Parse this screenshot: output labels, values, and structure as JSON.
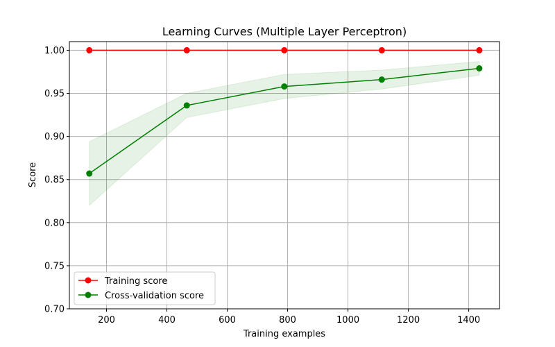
{
  "chart_data": {
    "type": "line",
    "title": "Learning Curves (Multiple Layer Perceptron)",
    "xlabel": "Training examples",
    "ylabel": "Score",
    "xlim": [
      77,
      1502
    ],
    "ylim": [
      0.7,
      1.01
    ],
    "x_ticks": [
      200,
      400,
      600,
      800,
      1000,
      1200,
      1400
    ],
    "y_ticks": [
      0.7,
      0.75,
      0.8,
      0.85,
      0.9,
      0.95,
      1.0
    ],
    "x_tick_labels": [
      "200",
      "400",
      "600",
      "800",
      "1000",
      "1200",
      "1400"
    ],
    "y_tick_labels": [
      "0.70",
      "0.75",
      "0.80",
      "0.85",
      "0.90",
      "0.95",
      "1.00"
    ],
    "grid": true,
    "legend_position": "lower-left",
    "x": [
      143,
      466,
      789,
      1112,
      1435
    ],
    "series": [
      {
        "name": "Training score",
        "color": "#ff0000",
        "values": [
          1.0,
          1.0,
          1.0,
          1.0,
          1.0
        ],
        "band_lower": [
          1.0,
          1.0,
          1.0,
          1.0,
          1.0
        ],
        "band_upper": [
          1.0,
          1.0,
          1.0,
          1.0,
          1.0
        ],
        "band_color": "#ff0000"
      },
      {
        "name": "Cross-validation score",
        "color": "#008000",
        "values": [
          0.857,
          0.936,
          0.958,
          0.966,
          0.979
        ],
        "band_lower": [
          0.82,
          0.922,
          0.944,
          0.955,
          0.971
        ],
        "band_upper": [
          0.894,
          0.95,
          0.972,
          0.977,
          0.987
        ],
        "band_color": "#008000"
      }
    ]
  }
}
